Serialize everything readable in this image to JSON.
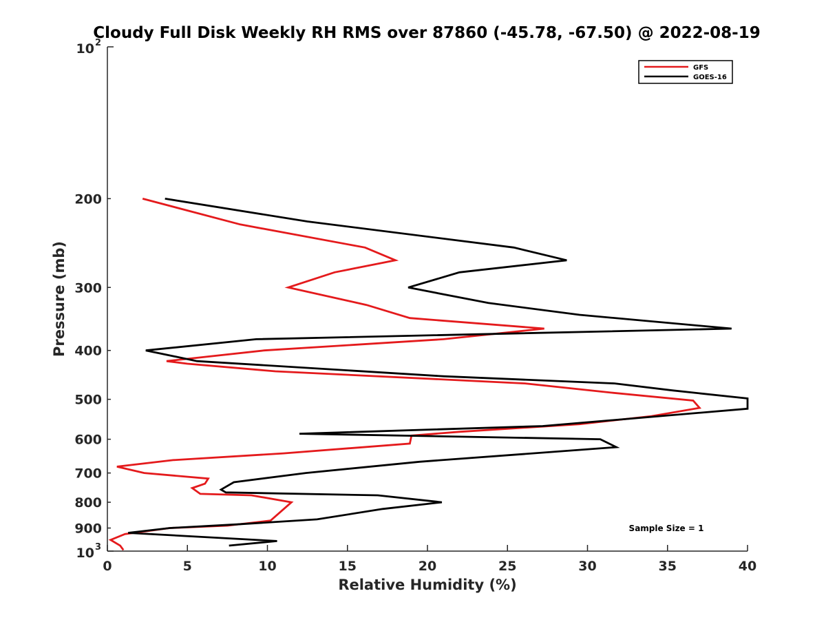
{
  "chart_data": {
    "type": "line",
    "title": "Cloudy Full Disk Weekly RH RMS over 87860 (-45.78, -67.50) @ 2022-08-19",
    "xlabel": "Relative Humidity (%)",
    "ylabel": "Pressure (mb)",
    "xlim": [
      0,
      40
    ],
    "ylim": [
      100,
      1000
    ],
    "y_scale": "log",
    "y_reversed": true,
    "x_ticks": [
      "0",
      "5",
      "10",
      "15",
      "20",
      "25",
      "30",
      "35",
      "40"
    ],
    "y_ticks": [
      {
        "value": 100,
        "label": "10",
        "exp": "2"
      },
      {
        "value": 200,
        "label": "200"
      },
      {
        "value": 300,
        "label": "300"
      },
      {
        "value": 400,
        "label": "400"
      },
      {
        "value": 500,
        "label": "500"
      },
      {
        "value": 600,
        "label": "600"
      },
      {
        "value": 700,
        "label": "700"
      },
      {
        "value": 800,
        "label": "800"
      },
      {
        "value": 900,
        "label": "900"
      },
      {
        "value": 1000,
        "label": "10",
        "exp": "3"
      }
    ],
    "grid": false,
    "legend_position": "top-right",
    "annotation": "Sample Size = 1",
    "series": [
      {
        "name": "GFS",
        "color": "#e41a1c",
        "points": [
          {
            "x": 2.2,
            "p": 200
          },
          {
            "x": 8.3,
            "p": 225
          },
          {
            "x": 16.1,
            "p": 250
          },
          {
            "x": 18.0,
            "p": 265
          },
          {
            "x": 14.2,
            "p": 280
          },
          {
            "x": 11.3,
            "p": 300
          },
          {
            "x": 16.2,
            "p": 325
          },
          {
            "x": 18.9,
            "p": 345
          },
          {
            "x": 27.3,
            "p": 362
          },
          {
            "x": 21.0,
            "p": 380
          },
          {
            "x": 9.8,
            "p": 400
          },
          {
            "x": 3.7,
            "p": 420
          },
          {
            "x": 5.0,
            "p": 425
          },
          {
            "x": 10.5,
            "p": 440
          },
          {
            "x": 26.1,
            "p": 465
          },
          {
            "x": 31.5,
            "p": 485
          },
          {
            "x": 36.6,
            "p": 503
          },
          {
            "x": 37.0,
            "p": 520
          },
          {
            "x": 34.0,
            "p": 540
          },
          {
            "x": 29.5,
            "p": 560
          },
          {
            "x": 22.0,
            "p": 580
          },
          {
            "x": 19.0,
            "p": 590
          },
          {
            "x": 18.9,
            "p": 612
          },
          {
            "x": 11.0,
            "p": 640
          },
          {
            "x": 4.1,
            "p": 660
          },
          {
            "x": 0.6,
            "p": 680
          },
          {
            "x": 2.3,
            "p": 700
          },
          {
            "x": 6.3,
            "p": 718
          },
          {
            "x": 6.1,
            "p": 735
          },
          {
            "x": 5.3,
            "p": 750
          },
          {
            "x": 5.8,
            "p": 770
          },
          {
            "x": 9.0,
            "p": 775
          },
          {
            "x": 11.5,
            "p": 800
          },
          {
            "x": 10.2,
            "p": 870
          },
          {
            "x": 7.5,
            "p": 890
          },
          {
            "x": 3.9,
            "p": 900
          },
          {
            "x": 1.1,
            "p": 925
          },
          {
            "x": 0.2,
            "p": 950
          },
          {
            "x": 0.8,
            "p": 975
          },
          {
            "x": 1.0,
            "p": 995
          }
        ]
      },
      {
        "name": "GOES-16",
        "color": "#000000",
        "points": [
          {
            "x": 3.6,
            "p": 200
          },
          {
            "x": 12.5,
            "p": 222
          },
          {
            "x": 25.4,
            "p": 250
          },
          {
            "x": 28.7,
            "p": 265
          },
          {
            "x": 22.0,
            "p": 280
          },
          {
            "x": 18.8,
            "p": 300
          },
          {
            "x": 23.8,
            "p": 322
          },
          {
            "x": 29.5,
            "p": 340
          },
          {
            "x": 39.0,
            "p": 362
          },
          {
            "x": 9.3,
            "p": 380
          },
          {
            "x": 2.4,
            "p": 400
          },
          {
            "x": 5.6,
            "p": 420
          },
          {
            "x": 21.0,
            "p": 450
          },
          {
            "x": 31.7,
            "p": 465
          },
          {
            "x": 35.3,
            "p": 480
          },
          {
            "x": 40.0,
            "p": 498
          },
          {
            "x": 40.0,
            "p": 522
          },
          {
            "x": 27.2,
            "p": 565
          },
          {
            "x": 12.0,
            "p": 585
          },
          {
            "x": 30.8,
            "p": 600
          },
          {
            "x": 31.8,
            "p": 622
          },
          {
            "x": 19.5,
            "p": 665
          },
          {
            "x": 12.4,
            "p": 700
          },
          {
            "x": 7.9,
            "p": 730
          },
          {
            "x": 7.1,
            "p": 755
          },
          {
            "x": 7.4,
            "p": 765
          },
          {
            "x": 16.9,
            "p": 775
          },
          {
            "x": 20.9,
            "p": 800
          },
          {
            "x": 17.2,
            "p": 825
          },
          {
            "x": 13.1,
            "p": 865
          },
          {
            "x": 8.1,
            "p": 885
          },
          {
            "x": 3.9,
            "p": 900
          },
          {
            "x": 1.3,
            "p": 920
          },
          {
            "x": 10.6,
            "p": 955
          },
          {
            "x": 7.6,
            "p": 975
          }
        ]
      }
    ]
  }
}
